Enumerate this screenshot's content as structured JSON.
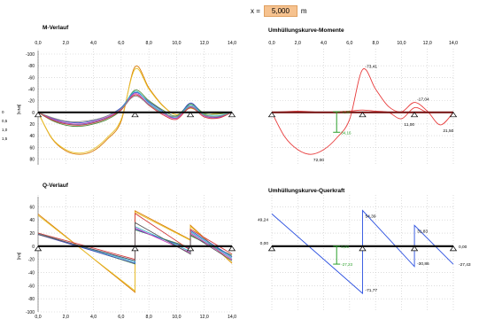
{
  "x_input": {
    "label": "x =",
    "value": "5,000",
    "unit": "m"
  },
  "chart_data": [
    {
      "id": "m_verlauf",
      "type": "line",
      "title": "M-Verlauf",
      "ylabel": "[kNm]",
      "x_ticks": [
        "0,0",
        "2,0",
        "4,0",
        "6,0",
        "8,0",
        "10,0",
        "12,0",
        "14,0"
      ],
      "xlim": [
        0,
        14
      ],
      "y_ticks": [
        -100,
        -80,
        -60,
        -40,
        -20,
        0,
        20,
        40,
        60,
        80
      ],
      "ylim": [
        -100,
        90
      ],
      "y_inverted": true,
      "supports": [
        0,
        7,
        11,
        14
      ],
      "y_side_labels": [
        "0",
        "0,5",
        "1,0",
        "1,5"
      ],
      "series": [
        {
          "color": "#d97a00",
          "x": [
            0,
            1,
            2,
            3,
            4,
            5,
            6,
            7,
            8,
            9,
            10,
            11,
            12,
            13,
            14
          ],
          "values": [
            0,
            45,
            66,
            72,
            66,
            46,
            15,
            -78,
            -42,
            -12,
            4,
            -8,
            3,
            2,
            0
          ]
        },
        {
          "color": "#e8c12b",
          "x": [
            0,
            1,
            2,
            3,
            4,
            5,
            6,
            7,
            8,
            9,
            10,
            11,
            12,
            13,
            14
          ],
          "values": [
            0,
            44,
            64,
            70,
            63,
            43,
            12,
            -74,
            -40,
            -11,
            4,
            -7,
            3,
            2,
            0
          ]
        },
        {
          "color": "#4a8a3a",
          "x": [
            0,
            1,
            2,
            3,
            4,
            5,
            6,
            7,
            8,
            9,
            10,
            11,
            12,
            13,
            14
          ],
          "values": [
            0,
            14,
            22,
            24,
            20,
            12,
            -4,
            -38,
            -20,
            -4,
            6,
            -14,
            2,
            3,
            0
          ]
        },
        {
          "color": "#3b4fc4",
          "x": [
            0,
            1,
            2,
            3,
            4,
            5,
            6,
            7,
            8,
            9,
            10,
            11,
            12,
            13,
            14
          ],
          "values": [
            0,
            10,
            16,
            18,
            14,
            6,
            -8,
            -34,
            -18,
            -2,
            10,
            -16,
            6,
            8,
            0
          ]
        },
        {
          "color": "#2fb6c9",
          "x": [
            0,
            1,
            2,
            3,
            4,
            5,
            6,
            7,
            8,
            9,
            10,
            11,
            12,
            13,
            14
          ],
          "values": [
            0,
            12,
            19,
            21,
            17,
            9,
            -6,
            -36,
            -16,
            0,
            8,
            -12,
            4,
            6,
            0
          ]
        },
        {
          "color": "#c23dbe",
          "x": [
            0,
            1,
            2,
            3,
            4,
            5,
            6,
            7,
            8,
            9,
            10,
            11,
            12,
            13,
            14
          ],
          "values": [
            0,
            11,
            18,
            20,
            16,
            8,
            -5,
            -32,
            -14,
            2,
            10,
            -10,
            6,
            9,
            0
          ]
        },
        {
          "color": "#d23a3a",
          "x": [
            0,
            1,
            2,
            3,
            4,
            5,
            6,
            7,
            8,
            9,
            10,
            11,
            12,
            13,
            14
          ],
          "values": [
            0,
            13,
            20,
            22,
            18,
            10,
            -4,
            -30,
            -12,
            4,
            12,
            -8,
            8,
            10,
            0
          ]
        },
        {
          "color": "#8a8a8a",
          "x": [
            0,
            1,
            2,
            3,
            4,
            5,
            6,
            7,
            8,
            9,
            10,
            11,
            12,
            13,
            14
          ],
          "values": [
            0,
            9,
            15,
            16,
            13,
            6,
            -6,
            -28,
            -13,
            1,
            7,
            -9,
            5,
            7,
            0
          ]
        }
      ]
    },
    {
      "id": "umh_momente",
      "type": "line",
      "title": "Umhüllungskurve-Momente",
      "x_ticks": [
        "0,0",
        "2,0",
        "4,0",
        "6,0",
        "8,0",
        "10,0",
        "12,0",
        "14,0"
      ],
      "xlim": [
        0,
        14
      ],
      "ylim": [
        -100,
        90
      ],
      "y_inverted": true,
      "supports": [
        0,
        7,
        11,
        14
      ],
      "cursor_x": 5,
      "cursor_labels": [
        "-1,00",
        "34,16"
      ],
      "cursor_values": [
        -1,
        34.16
      ],
      "series": [
        {
          "color": "#e83b3b",
          "x": [
            0,
            1,
            2,
            3,
            4,
            5,
            6,
            7,
            8,
            9,
            10,
            11,
            12,
            13,
            14
          ],
          "values": [
            0,
            42,
            64,
            72,
            64,
            44,
            12,
            -73.41,
            -40,
            -10,
            -1,
            -17.04,
            -2,
            21.5,
            0
          ]
        },
        {
          "color": "#e83b3b",
          "x": [
            0,
            1,
            2,
            3,
            4,
            5,
            6,
            7,
            8,
            9,
            10,
            11,
            12,
            13,
            14
          ],
          "values": [
            0,
            -1,
            -2,
            -1,
            0,
            -1,
            -2,
            -4,
            -2,
            0,
            11,
            -8,
            0,
            0,
            0
          ]
        }
      ],
      "annotations": [
        {
          "text": "-73,41",
          "x": 7,
          "y": -73.41
        },
        {
          "text": "-17,04",
          "x": 11,
          "y": -17.04
        },
        {
          "text": "11,00",
          "x": 10,
          "y": 11
        },
        {
          "text": "21,50",
          "x": 13,
          "y": 21.5
        },
        {
          "text": "72,00",
          "x": 3,
          "y": 72
        }
      ]
    },
    {
      "id": "q_verlauf",
      "type": "line",
      "title": "Q-Verlauf",
      "ylabel": "[kN]",
      "x_ticks": [
        "0,0",
        "2,0",
        "4,0",
        "6,0",
        "8,0",
        "10,0",
        "12,0",
        "14,0"
      ],
      "xlim": [
        0,
        14
      ],
      "y_ticks": [
        60,
        40,
        20,
        0,
        -20,
        -40,
        -60,
        -80,
        -100
      ],
      "ylim": [
        -100,
        70
      ],
      "supports": [
        0,
        7,
        11,
        14
      ],
      "series": [
        {
          "color": "#d97a00",
          "x": [
            0,
            7,
            7,
            11,
            11,
            14
          ],
          "values": [
            49,
            -70,
            54,
            10,
            32,
            -26
          ]
        },
        {
          "color": "#e8c12b",
          "x": [
            0,
            7,
            7,
            11,
            11,
            14
          ],
          "values": [
            47,
            -68,
            52,
            9,
            30,
            -25
          ]
        },
        {
          "color": "#4a8a3a",
          "x": [
            0,
            7,
            7,
            11,
            11,
            14
          ],
          "values": [
            20,
            -27,
            25,
            -2,
            16,
            -14
          ]
        },
        {
          "color": "#3b4fc4",
          "x": [
            0,
            7,
            7,
            11,
            11,
            14
          ],
          "values": [
            18,
            -26,
            26,
            -4,
            24,
            -16
          ]
        },
        {
          "color": "#2fb6c9",
          "x": [
            0,
            7,
            7,
            11,
            11,
            14
          ],
          "values": [
            19,
            -24,
            30,
            -8,
            22,
            -18
          ]
        },
        {
          "color": "#c23dbe",
          "x": [
            0,
            7,
            7,
            11,
            11,
            14
          ],
          "values": [
            18,
            -22,
            28,
            -10,
            20,
            -20
          ]
        },
        {
          "color": "#d23a3a",
          "x": [
            0,
            7,
            7,
            11,
            11,
            14
          ],
          "values": [
            20,
            -20,
            50,
            -6,
            26,
            -12
          ]
        },
        {
          "color": "#5a5a5a",
          "x": [
            0,
            7,
            7,
            11,
            11,
            14
          ],
          "values": [
            18,
            -22,
            36,
            -12,
            18,
            -22
          ]
        }
      ]
    },
    {
      "id": "umh_querkraft",
      "type": "line",
      "title": "Umhüllungskurve-Querkraft",
      "xlim": [
        0,
        14
      ],
      "ylim": [
        -100,
        70
      ],
      "supports": [
        0,
        7,
        11,
        14
      ],
      "cursor_x": 5,
      "cursor_labels": [
        "0,00",
        "-27,23"
      ],
      "cursor_values": [
        0,
        -27.23
      ],
      "series": [
        {
          "color": "#2a4fe0",
          "x": [
            0,
            7,
            7,
            11,
            11,
            14
          ],
          "values": [
            49.24,
            -71.77,
            54.39,
            -30.86,
            31.83,
            -27.43
          ]
        }
      ],
      "annotations": [
        {
          "text": "49,24",
          "x": 0,
          "y": 49.24
        },
        {
          "text": "54,39",
          "x": 7,
          "y": 54.39
        },
        {
          "text": "31,83",
          "x": 11,
          "y": 31.83
        },
        {
          "text": "0,00",
          "x": 0,
          "y": 0
        },
        {
          "text": "0,00",
          "x": 14,
          "y": 0
        },
        {
          "text": "-30,86",
          "x": 11,
          "y": -30.86
        },
        {
          "text": "-27,43",
          "x": 14,
          "y": -27.43
        },
        {
          "text": "-71,77",
          "x": 7,
          "y": -71.77
        }
      ]
    }
  ]
}
